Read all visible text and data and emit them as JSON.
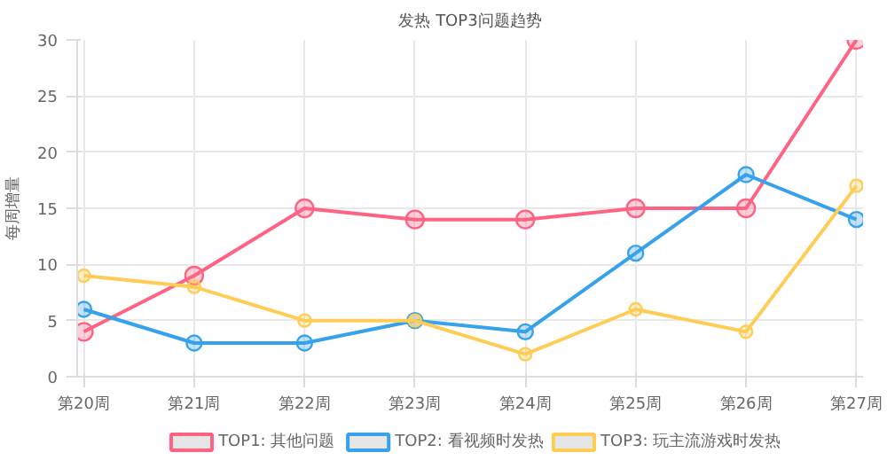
{
  "chart_data": {
    "type": "line",
    "title": "发热 TOP3问题趋势",
    "ylabel": "每周增量",
    "categories": [
      "第20周",
      "第21周",
      "第22周",
      "第23周",
      "第24周",
      "第25周",
      "第26周",
      "第27周"
    ],
    "series": [
      {
        "name": "TOP1: 其他问题",
        "color": "#ff6384",
        "values": [
          4,
          9,
          15,
          14,
          14,
          15,
          15,
          30
        ]
      },
      {
        "name": "TOP2: 看视频时发热",
        "color": "#36a2eb",
        "values": [
          6,
          3,
          3,
          5,
          4,
          11,
          18,
          14
        ]
      },
      {
        "name": "TOP3: 玩主流游戏时发热",
        "color": "#ffcd56",
        "values": [
          9,
          8,
          5,
          5,
          2,
          6,
          4,
          17
        ]
      }
    ],
    "ylim": [
      0,
      30
    ],
    "yticks": [
      0,
      5,
      10,
      15,
      20,
      25,
      30
    ],
    "grid": true,
    "legend": "bottom",
    "marker": "circle",
    "line_style": "solid"
  }
}
